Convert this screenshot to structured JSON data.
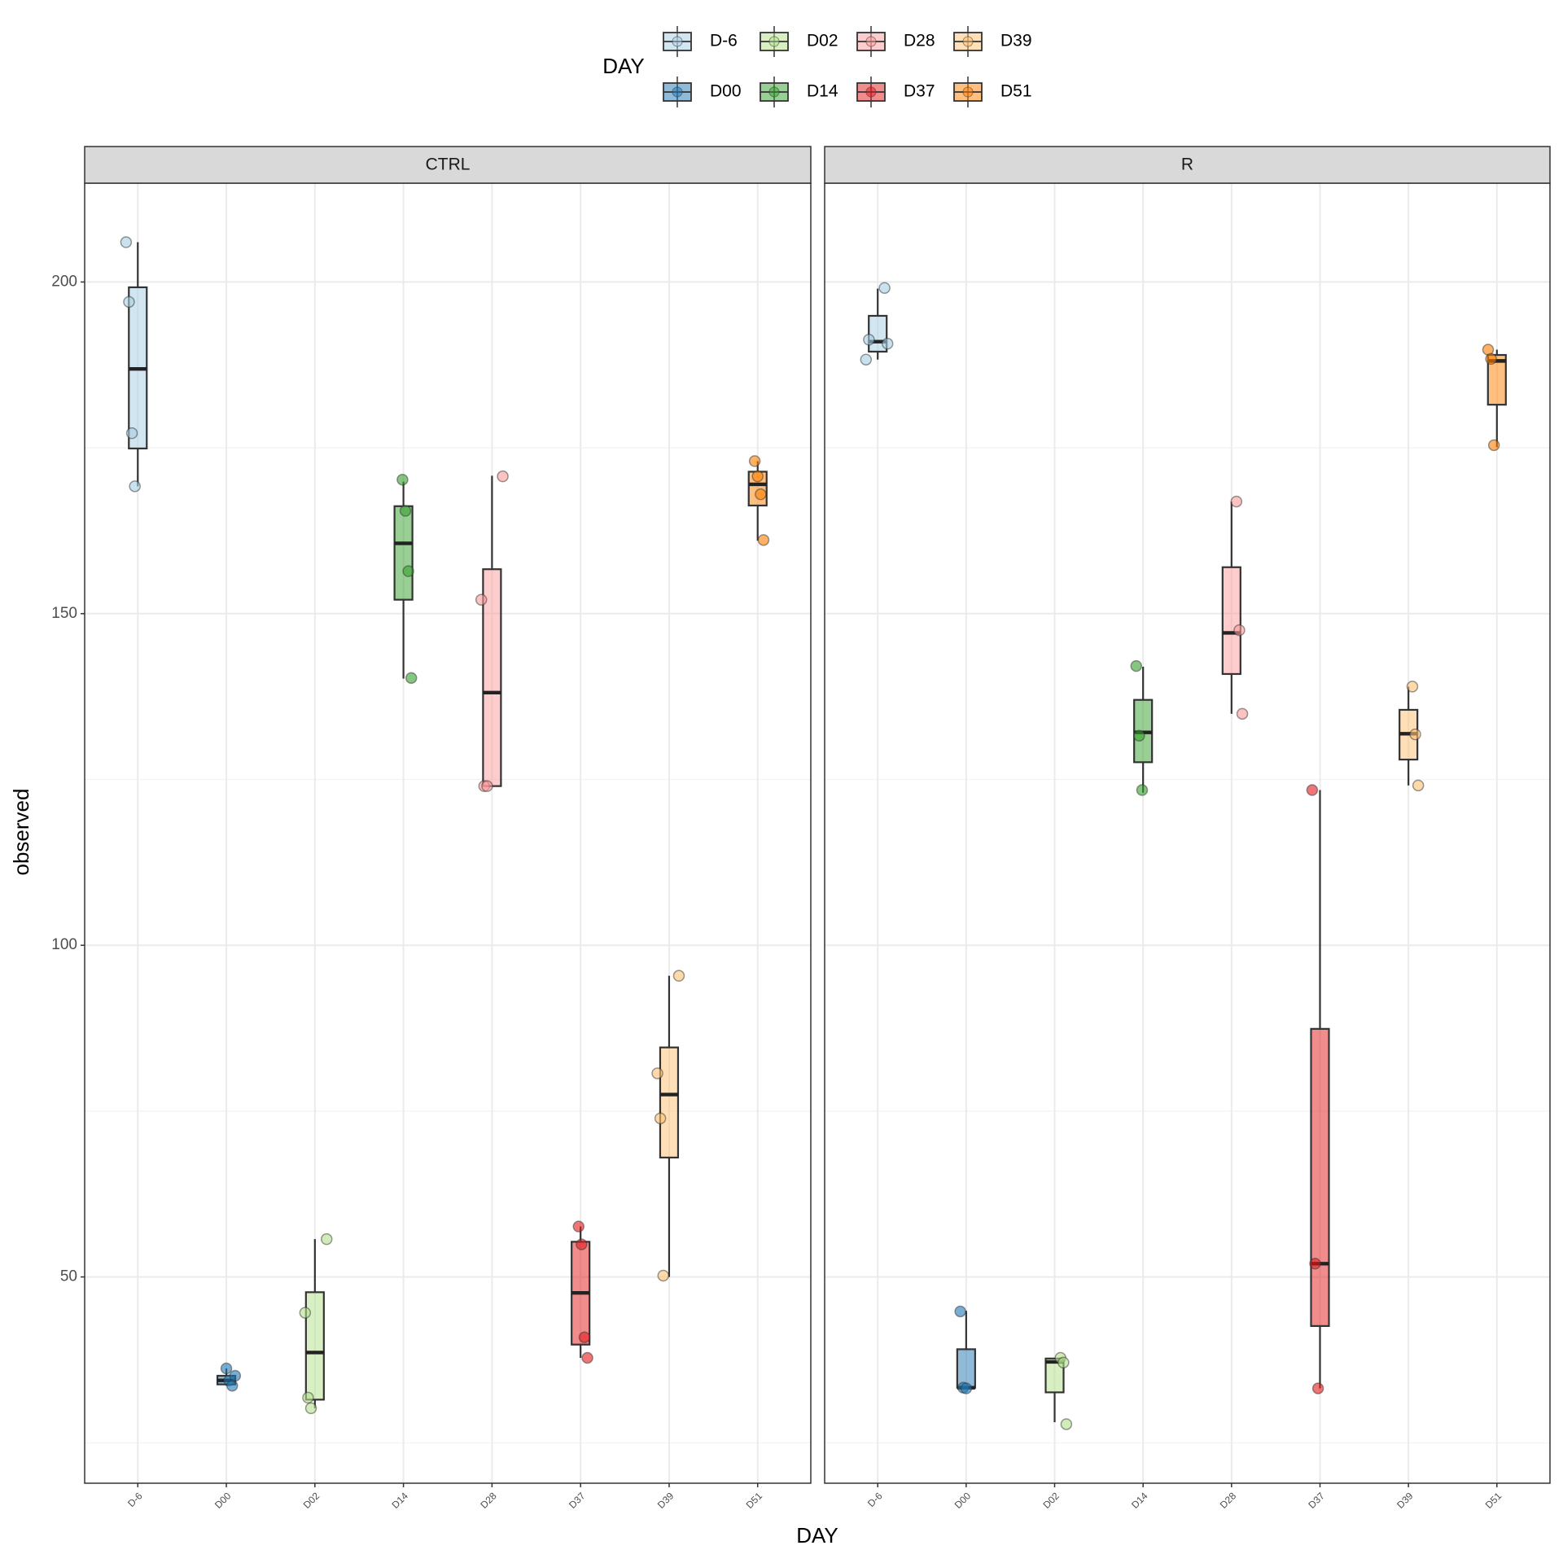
{
  "chart_data": [
    {
      "type": "box",
      "title": "CTRL",
      "xlabel": "DAY",
      "ylabel": "observed",
      "legend": {
        "title": "DAY",
        "position": "top"
      },
      "categories": [
        "D-6",
        "D00",
        "D02",
        "D14",
        "D28",
        "D37",
        "D39",
        "D51"
      ],
      "colors": [
        "#a6cee3",
        "#1f78b4",
        "#b2df8a",
        "#33a02c",
        "#fb9a99",
        "#e31a1c",
        "#fdbf6f",
        "#ff7f00"
      ],
      "ylim": [
        18.9,
        214.9
      ],
      "yticks": [
        50,
        100,
        150,
        200
      ],
      "minor_yticks": [
        25,
        75,
        125,
        175
      ],
      "grid": true,
      "boxes": [
        {
          "low": 169.2,
          "q1": 174.9,
          "median": 186.9,
          "q3": 199.2,
          "high": 206,
          "points": [
            206,
            197,
            177.2,
            169.2
          ]
        },
        {
          "low": 33.6,
          "q1": 33.8,
          "median": 34.4,
          "q3": 35.1,
          "high": 36.2,
          "points": [
            36.2,
            34.4,
            33.6,
            35.1
          ]
        },
        {
          "low": 30.2,
          "q1": 31.5,
          "median": 38.6,
          "q3": 47.7,
          "high": 55.7,
          "points": [
            55.7,
            44.6,
            31.8,
            30.2
          ]
        },
        {
          "low": 140.2,
          "q1": 152.1,
          "median": 160.6,
          "q3": 166.2,
          "high": 169.9,
          "points": [
            170.2,
            165.5,
            156.4,
            140.3
          ]
        },
        {
          "low": 124,
          "q1": 124,
          "median": 138.1,
          "q3": 156.7,
          "high": 170.8,
          "points": [
            170.7,
            152.1,
            124,
            124
          ]
        },
        {
          "low": 37.8,
          "q1": 39.8,
          "median": 47.6,
          "q3": 55.3,
          "high": 57.6,
          "points": [
            57.6,
            54.9,
            40.9,
            37.8
          ]
        },
        {
          "low": 50,
          "q1": 68,
          "median": 77.5,
          "q3": 84.6,
          "high": 95.4,
          "points": [
            95.4,
            80.7,
            73.9,
            50.2
          ]
        },
        {
          "low": 161,
          "q1": 166.3,
          "median": 169.5,
          "q3": 171.4,
          "high": 173,
          "points": [
            173,
            170.7,
            168,
            161.1
          ]
        }
      ]
    },
    {
      "type": "box",
      "title": "R",
      "categories": [
        "D-6",
        "D00",
        "D02",
        "D14",
        "D28",
        "D37",
        "D39",
        "D51"
      ],
      "colors": [
        "#a6cee3",
        "#1f78b4",
        "#b2df8a",
        "#33a02c",
        "#fb9a99",
        "#e31a1c",
        "#fdbf6f",
        "#ff7f00"
      ],
      "ylim": [
        18.9,
        214.9
      ],
      "yticks": [
        50,
        100,
        150,
        200
      ],
      "minor_yticks": [
        25,
        75,
        125,
        175
      ],
      "grid": true,
      "boxes": [
        {
          "low": 188.3,
          "q1": 189.5,
          "median": 191,
          "q3": 194.9,
          "high": 199,
          "points": [
            199.1,
            190.7,
            188.3,
            191.3
          ]
        },
        {
          "low": 33.3,
          "q1": 33.3,
          "median": 33.3,
          "q3": 39.1,
          "high": 44.9,
          "points": [
            44.8,
            33.3,
            33.2
          ]
        },
        {
          "low": 28.1,
          "q1": 32.6,
          "median": 37.2,
          "q3": 37.7,
          "high": 37.7,
          "points": [
            37.8,
            37.1,
            27.8
          ]
        },
        {
          "low": 123,
          "q1": 127.6,
          "median": 132.1,
          "q3": 137,
          "high": 142,
          "points": [
            142.1,
            131.6,
            123.4
          ]
        },
        {
          "low": 134.9,
          "q1": 140.9,
          "median": 147.1,
          "q3": 157,
          "high": 166.9,
          "points": [
            166.9,
            147.5,
            134.9
          ]
        },
        {
          "low": 33.2,
          "q1": 42.6,
          "median": 52,
          "q3": 87.4,
          "high": 123.4,
          "points": [
            123.4,
            52,
            33.2
          ]
        },
        {
          "low": 124.1,
          "q1": 128,
          "median": 131.9,
          "q3": 135.5,
          "high": 139,
          "points": [
            139,
            131.8,
            124.1
          ]
        },
        {
          "low": 175.1,
          "q1": 181.5,
          "median": 188.1,
          "q3": 189,
          "high": 189.8,
          "points": [
            189.8,
            188.4,
            175.4
          ]
        }
      ]
    }
  ]
}
